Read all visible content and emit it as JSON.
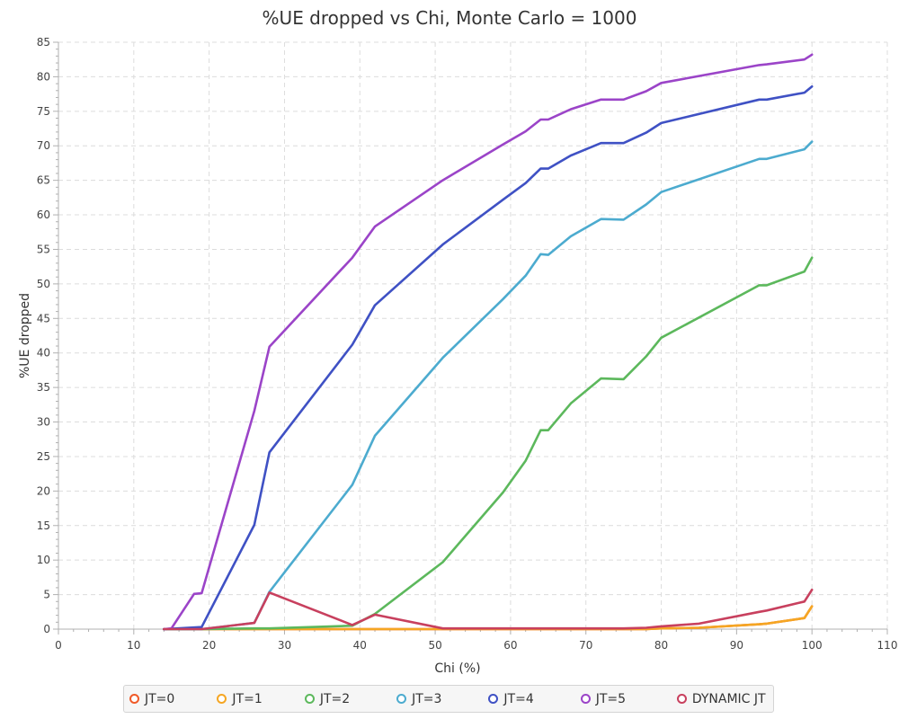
{
  "chart_data": {
    "type": "line",
    "title": "%UE dropped vs Chi, Monte Carlo = 1000",
    "xlabel": "Chi (%)",
    "ylabel": "%UE dropped",
    "xlim": [
      0,
      110
    ],
    "ylim": [
      0,
      85
    ],
    "xticks": [
      0,
      10,
      20,
      30,
      40,
      50,
      60,
      70,
      80,
      90,
      100,
      110
    ],
    "yticks": [
      0,
      5,
      10,
      15,
      20,
      25,
      30,
      35,
      40,
      45,
      50,
      55,
      60,
      65,
      70,
      75,
      80,
      85
    ],
    "grid": true,
    "legend_position": "bottom",
    "series": [
      {
        "name": "JT=0",
        "color": "#f05a28",
        "x": [
          14,
          20,
          26,
          28,
          39,
          42,
          51,
          59,
          62,
          64,
          65,
          68,
          72,
          75,
          78,
          80,
          85,
          93,
          94,
          99,
          100
        ],
        "y": [
          0,
          0,
          0,
          0,
          0,
          0,
          0,
          0,
          0,
          0,
          0,
          0,
          0,
          0,
          0,
          0.1,
          0.2,
          0.7,
          0.8,
          1.6,
          3.3
        ]
      },
      {
        "name": "JT=1",
        "color": "#f5a623",
        "x": [
          14,
          20,
          26,
          28,
          39,
          42,
          51,
          59,
          62,
          64,
          65,
          68,
          72,
          75,
          78,
          80,
          85,
          93,
          94,
          99,
          100
        ],
        "y": [
          0,
          0,
          0,
          0,
          0,
          0,
          0,
          0,
          0,
          0,
          0,
          0,
          0,
          0,
          0,
          0.1,
          0.2,
          0.7,
          0.8,
          1.6,
          3.3
        ]
      },
      {
        "name": "JT=2",
        "color": "#5cb85c",
        "x": [
          14,
          19,
          26,
          28,
          39,
          42,
          51,
          59,
          62,
          64,
          65,
          68,
          72,
          75,
          78,
          80,
          93,
          94,
          99,
          100
        ],
        "y": [
          0,
          0,
          0.1,
          0.1,
          0.5,
          2.2,
          9.7,
          19.8,
          24.4,
          28.8,
          28.8,
          32.7,
          36.3,
          36.2,
          39.5,
          42.2,
          49.8,
          49.8,
          51.8,
          53.8
        ]
      },
      {
        "name": "JT=3",
        "color": "#4cabcf",
        "x": [
          14,
          19,
          26,
          28,
          39,
          42,
          51,
          59,
          62,
          64,
          65,
          68,
          72,
          75,
          78,
          80,
          93,
          94,
          99,
          100
        ],
        "y": [
          0,
          0,
          0.9,
          5.4,
          20.9,
          28.0,
          39.3,
          47.8,
          51.2,
          54.3,
          54.2,
          56.9,
          59.4,
          59.3,
          61.5,
          63.3,
          68.1,
          68.1,
          69.5,
          70.6
        ]
      },
      {
        "name": "JT=4",
        "color": "#3f51c4",
        "x": [
          14,
          19,
          26,
          28,
          39,
          42,
          51,
          59,
          62,
          64,
          65,
          68,
          72,
          75,
          78,
          80,
          93,
          94,
          99,
          100
        ],
        "y": [
          0,
          0.3,
          15.1,
          25.6,
          41.2,
          46.9,
          55.7,
          62.2,
          64.6,
          66.7,
          66.7,
          68.6,
          70.4,
          70.4,
          71.9,
          73.3,
          76.7,
          76.7,
          77.7,
          78.6
        ]
      },
      {
        "name": "JT=5",
        "color": "#9b44c8",
        "x": [
          14,
          15,
          18,
          19,
          26,
          28,
          39,
          42,
          51,
          59,
          62,
          64,
          65,
          68,
          72,
          75,
          78,
          80,
          93,
          94,
          99,
          100
        ],
        "y": [
          0,
          0.1,
          5.1,
          5.2,
          31.6,
          40.9,
          53.8,
          58.3,
          65.0,
          70.2,
          72.1,
          73.8,
          73.8,
          75.3,
          76.7,
          76.7,
          77.9,
          79.1,
          81.7,
          81.8,
          82.5,
          83.2
        ]
      },
      {
        "name": "DYNAMIC JT",
        "color": "#c8405e",
        "x": [
          14,
          19,
          26,
          28,
          39,
          42,
          51,
          59,
          62,
          64,
          65,
          68,
          72,
          75,
          78,
          80,
          85,
          93,
          94,
          99,
          100
        ],
        "y": [
          0,
          0,
          0.9,
          5.3,
          0.6,
          2.1,
          0.1,
          0.1,
          0.1,
          0.1,
          0.1,
          0.1,
          0.1,
          0.1,
          0.2,
          0.4,
          0.8,
          2.5,
          2.7,
          4.0,
          5.7
        ]
      }
    ]
  }
}
